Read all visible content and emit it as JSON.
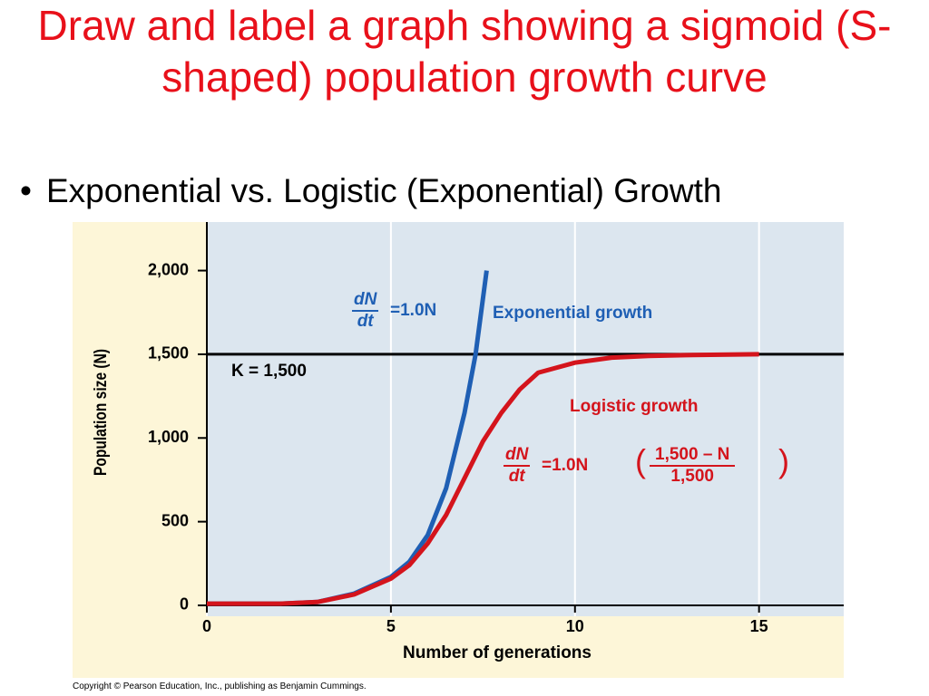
{
  "title": "Draw and label a graph showing a sigmoid (S-shaped) population growth curve",
  "bullet": "Exponential vs. Logistic (Exponential) Growth",
  "copyright": "Copyright © Pearson Education, Inc., publishing as Benjamin Cummings.",
  "chart_data": {
    "type": "line",
    "xlabel": "Number of generations",
    "ylabel": "Population size (N)",
    "xlim": [
      0,
      17.3
    ],
    "ylim": [
      -65,
      2290
    ],
    "xticks": [
      0,
      5,
      10,
      15
    ],
    "yticks": [
      0,
      500,
      {
        "value": 1000,
        "label": "1,000"
      },
      {
        "value": 1500,
        "label": "1,500"
      },
      {
        "value": 2000,
        "label": "2,000"
      }
    ],
    "grid": "x",
    "carrying_capacity": {
      "value": 1500,
      "label": "K = 1,500",
      "color": "#000000"
    },
    "series": [
      {
        "name": "Exponential growth",
        "color": "#1f5fb4",
        "x": [
          0,
          1,
          2,
          3,
          4,
          5,
          5.5,
          6,
          6.5,
          7,
          7.3,
          7.6
        ],
        "values": [
          10,
          10,
          10,
          20,
          70,
          170,
          260,
          420,
          700,
          1150,
          1500,
          2000
        ],
        "equation": {
          "numerator": "dN",
          "denominator": "dt",
          "rest": "=1.0N"
        }
      },
      {
        "name": "Logistic growth",
        "color": "#d4141c",
        "x": [
          0,
          1,
          2,
          3,
          4,
          5,
          5.5,
          6,
          6.5,
          7,
          7.5,
          8,
          8.5,
          9,
          10,
          11,
          12,
          13,
          15
        ],
        "values": [
          10,
          10,
          10,
          20,
          65,
          160,
          240,
          370,
          540,
          760,
          980,
          1150,
          1290,
          1390,
          1450,
          1480,
          1490,
          1495,
          1500
        ],
        "equation": {
          "numerator": "dN",
          "denominator": "dt",
          "rest": "=1.0N",
          "paren_numerator": "1,500 – N",
          "paren_denominator": "1,500"
        }
      }
    ]
  }
}
